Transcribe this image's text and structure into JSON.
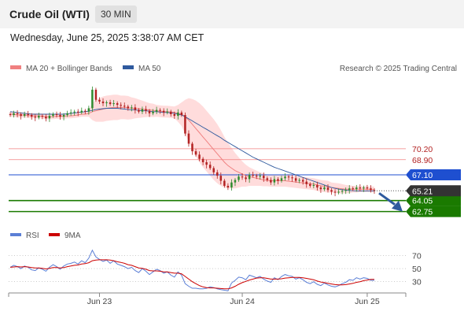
{
  "header": {
    "title": "Crude Oil (WTI)",
    "interval": "30 MIN"
  },
  "timestamp": "Wednesday, June 25, 2025 3:38:07 AM CET",
  "legend": {
    "ma20": "MA 20 + Bollinger Bands",
    "ma50": "MA 50",
    "copyright": "Research © 2025 Trading Central"
  },
  "rsi_legend": {
    "rsi": "RSI",
    "ma9": "9MA"
  },
  "colors": {
    "up": "#2e8b2e",
    "down": "#b22222",
    "ma20": "#f08080",
    "ma50": "#2f5a9e",
    "band": "#ffd6d6",
    "support": "#1a7a00",
    "resistance": "#f08080",
    "pivot": "#1e4fd0",
    "current": "#333333",
    "arrow": "#2f5a9e",
    "rsi": "#5b7fd6",
    "rsi_ma": "#cc0000"
  },
  "chart_data": [
    {
      "type": "candlestick",
      "x_ticks": [
        "Jun 23",
        "Jun 24",
        "Jun 25"
      ],
      "ylim": [
        61.5,
        78.5
      ],
      "last_price": "65.21",
      "levels": [
        {
          "label": "70.20",
          "value": 70.2,
          "kind": "resistance"
        },
        {
          "label": "68.90",
          "value": 68.9,
          "kind": "resistance"
        },
        {
          "label": "67.10",
          "value": 67.1,
          "kind": "pivot"
        },
        {
          "label": "64.05",
          "value": 64.05,
          "kind": "support"
        },
        {
          "label": "62.75",
          "value": 62.75,
          "kind": "support"
        }
      ],
      "series": [
        {
          "name": "MA 20 + Bollinger Bands"
        },
        {
          "name": "MA 50"
        }
      ],
      "closes": [
        74.2,
        74.4,
        74.3,
        74.1,
        74.3,
        74.2,
        74.0,
        73.9,
        74.1,
        74.0,
        73.8,
        74.1,
        74.3,
        74.2,
        74.0,
        74.2,
        74.4,
        74.5,
        74.6,
        74.5,
        74.7,
        74.6,
        75.0,
        77.2,
        76.0,
        75.8,
        75.6,
        75.7,
        75.5,
        75.6,
        75.4,
        75.3,
        75.2,
        75.0,
        75.1,
        74.8,
        74.6,
        74.9,
        74.7,
        74.4,
        74.6,
        74.8,
        74.7,
        74.5,
        74.6,
        74.3,
        74.1,
        74.5,
        74.2,
        72.0,
        70.8,
        69.9,
        69.5,
        69.0,
        68.6,
        68.3,
        67.9,
        67.4,
        67.0,
        66.4,
        65.8,
        65.6,
        66.2,
        66.5,
        66.9,
        66.8,
        66.6,
        67.1,
        67.0,
        66.9,
        67.0,
        66.7,
        66.5,
        66.2,
        66.6,
        66.4,
        66.7,
        66.9,
        66.8,
        66.7,
        66.4,
        66.5,
        66.3,
        66.0,
        65.8,
        65.9,
        65.6,
        65.4,
        65.6,
        65.3,
        65.1,
        65.0,
        65.1,
        65.2,
        65.3,
        65.5,
        65.4,
        65.6,
        65.5,
        65.6,
        65.5,
        65.3,
        65.21
      ],
      "bb_mid": [
        74.3,
        74.3,
        74.2,
        74.2,
        74.2,
        74.15,
        74.1,
        74.1,
        74.1,
        74.05,
        74.0,
        74.0,
        74.0,
        74.05,
        74.05,
        74.05,
        74.1,
        74.1,
        74.15,
        74.2,
        74.3,
        74.3,
        74.4,
        74.6,
        74.7,
        74.8,
        74.9,
        75.0,
        75.05,
        75.1,
        75.1,
        75.1,
        75.1,
        75.05,
        75.0,
        75.0,
        74.95,
        74.9,
        74.85,
        74.8,
        74.75,
        74.7,
        74.65,
        74.6,
        74.6,
        74.55,
        74.5,
        74.4,
        74.3,
        74.0,
        73.6,
        73.1,
        72.6,
        72.1,
        71.6,
        71.1,
        70.6,
        70.1,
        69.6,
        69.1,
        68.6,
        68.2,
        67.9,
        67.6,
        67.4,
        67.2,
        67.0,
        66.9,
        66.8,
        66.7,
        66.6,
        66.5,
        66.45,
        66.4,
        66.4,
        66.4,
        66.4,
        66.4,
        66.35,
        66.3,
        66.25,
        66.2,
        66.15,
        66.1,
        66.05,
        66.0,
        65.9,
        65.8,
        65.75,
        65.7,
        65.6,
        65.55,
        65.5,
        65.45,
        65.4,
        65.4,
        65.4,
        65.4,
        65.4,
        65.4,
        65.4,
        65.38,
        65.36
      ],
      "bb_width": [
        0.3,
        0.3,
        0.3,
        0.3,
        0.3,
        0.3,
        0.3,
        0.3,
        0.3,
        0.3,
        0.3,
        0.3,
        0.3,
        0.3,
        0.3,
        0.3,
        0.3,
        0.3,
        0.3,
        0.3,
        0.3,
        0.3,
        0.4,
        1.0,
        1.3,
        1.4,
        1.5,
        1.5,
        1.5,
        1.5,
        1.5,
        1.4,
        1.4,
        1.4,
        1.3,
        1.2,
        1.1,
        1.0,
        0.9,
        0.8,
        0.8,
        0.7,
        0.7,
        0.7,
        0.7,
        0.7,
        0.7,
        1.0,
        1.4,
        2.0,
        2.6,
        3.0,
        3.3,
        3.5,
        3.6,
        3.6,
        3.6,
        3.6,
        3.5,
        3.3,
        3.0,
        2.7,
        2.4,
        2.1,
        1.8,
        1.5,
        1.3,
        1.1,
        1.0,
        0.9,
        0.8,
        0.75,
        0.7,
        0.7,
        0.7,
        0.7,
        0.7,
        0.7,
        0.7,
        0.7,
        0.7,
        0.7,
        0.7,
        0.7,
        0.7,
        0.7,
        0.7,
        0.7,
        0.7,
        0.7,
        0.6,
        0.6,
        0.6,
        0.55,
        0.5,
        0.45,
        0.4,
        0.4,
        0.35,
        0.35,
        0.35,
        0.35,
        0.35
      ],
      "ma50": [
        74.6,
        74.55,
        74.5,
        74.45,
        74.4,
        74.35,
        74.3,
        74.3,
        74.3,
        74.3,
        74.3,
        74.3,
        74.3,
        74.3,
        74.3,
        74.3,
        74.35,
        74.4,
        74.45,
        74.5,
        74.55,
        74.6,
        74.65,
        74.75,
        74.85,
        74.9,
        74.95,
        75.0,
        75.0,
        75.0,
        75.0,
        74.95,
        74.9,
        74.85,
        74.8,
        74.8,
        74.75,
        74.7,
        74.7,
        74.65,
        74.6,
        74.6,
        74.55,
        74.5,
        74.5,
        74.45,
        74.4,
        74.3,
        74.2,
        74.0,
        73.75,
        73.5,
        73.25,
        73.0,
        72.75,
        72.5,
        72.25,
        72.0,
        71.75,
        71.5,
        71.2,
        70.95,
        70.7,
        70.45,
        70.2,
        69.95,
        69.7,
        69.45,
        69.2,
        69.0,
        68.8,
        68.6,
        68.4,
        68.2,
        68.0,
        67.85,
        67.7,
        67.55,
        67.4,
        67.25,
        67.1,
        66.95,
        66.8,
        66.65,
        66.5,
        66.35,
        66.2,
        66.05,
        65.9,
        65.75,
        65.6,
        65.5,
        65.4,
        65.35,
        65.3,
        65.25,
        65.22,
        65.2,
        65.2,
        65.2,
        65.2,
        65.2,
        65.2
      ]
    },
    {
      "type": "line",
      "ylim": [
        20,
        85
      ],
      "y_ticks": [
        70,
        50,
        30
      ],
      "series": [
        {
          "name": "RSI",
          "values": [
            52,
            55,
            53,
            50,
            54,
            52,
            48,
            47,
            51,
            49,
            46,
            52,
            56,
            53,
            49,
            54,
            57,
            58,
            60,
            57,
            62,
            59,
            66,
            78,
            68,
            64,
            61,
            63,
            58,
            62,
            57,
            55,
            53,
            50,
            52,
            47,
            44,
            50,
            46,
            41,
            45,
            49,
            47,
            43,
            45,
            40,
            37,
            45,
            40,
            27,
            23,
            20,
            20,
            19,
            19,
            20,
            22,
            21,
            19,
            18,
            17,
            16,
            28,
            32,
            37,
            36,
            33,
            40,
            38,
            36,
            38,
            34,
            31,
            29,
            36,
            33,
            38,
            41,
            39,
            38,
            34,
            36,
            33,
            29,
            27,
            30,
            26,
            24,
            28,
            25,
            23,
            22,
            24,
            27,
            29,
            33,
            32,
            36,
            34,
            36,
            35,
            32,
            32
          ]
        },
        {
          "name": "9MA",
          "values": [
            52,
            52.5,
            53,
            52.5,
            53,
            52.5,
            51.5,
            51,
            51,
            50.5,
            49.5,
            50.5,
            51.5,
            51.5,
            51,
            51.5,
            53,
            54,
            55,
            55.5,
            57,
            57.5,
            59,
            62,
            63,
            63.5,
            63.5,
            63.5,
            63,
            62,
            60.5,
            59.5,
            58,
            56,
            55,
            53,
            51,
            50.5,
            49,
            47,
            46.5,
            46.5,
            46,
            45,
            45,
            44,
            43,
            43,
            42,
            38,
            34,
            30,
            27,
            24,
            22,
            21,
            20.5,
            20.5,
            20,
            19.5,
            19,
            19,
            20.5,
            23,
            26,
            28.5,
            30.5,
            32.5,
            34,
            35.5,
            36,
            36,
            35,
            34,
            34,
            34,
            34.5,
            35.5,
            36,
            36.5,
            36.5,
            36.5,
            36,
            35,
            34,
            33,
            31,
            29.5,
            28.5,
            27.5,
            26.5,
            25.5,
            25,
            25,
            25.5,
            26.5,
            27.5,
            29,
            30,
            31.5,
            32.5,
            33.5,
            33.5
          ]
        }
      ]
    }
  ]
}
